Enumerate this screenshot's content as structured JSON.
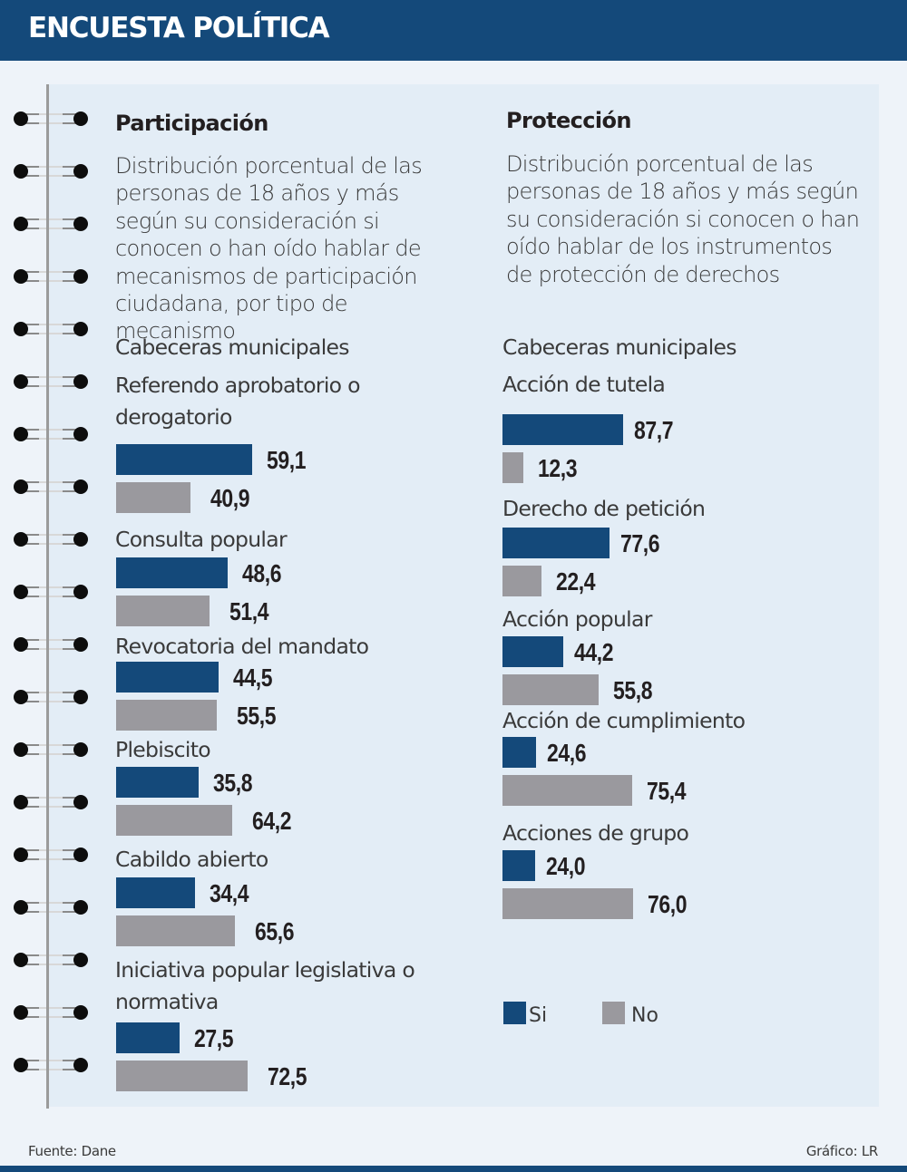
{
  "header": {
    "title": "ENCUESTA POLÍTICA"
  },
  "colors": {
    "si": "#14497a",
    "no": "#9a999e",
    "header": "#14497a",
    "panel": "#e3edf6"
  },
  "left": {
    "title": "Participación",
    "description": "Distribución porcentual de las personas de 18 años y más según su consideración si conocen o han oído hablar de mecanismos de participación ciudadana, por tipo de mecanismo",
    "subtitle": "Cabeceras municipales"
  },
  "right": {
    "title": "Protección",
    "description": "Distribución porcentual de las personas de 18 años y más según su consideración si conocen o han oído hablar de los instrumentos de protección de derechos",
    "subtitle": "Cabeceras municipales"
  },
  "legend": {
    "si": "Si",
    "no": "No"
  },
  "footer": {
    "source": "Fuente: Dane",
    "credit": "Gráfico: LR"
  },
  "chart_data": [
    {
      "type": "bar",
      "orientation": "horizontal",
      "title": "Participación",
      "subtitle": "Cabeceras municipales",
      "unit": "%",
      "categories": [
        "Referendo aprobatorio o derogatorio",
        "Consulta popular",
        "Revocatoria del mandato",
        "Plebiscito",
        "Cabildo abierto",
        "Iniciativa popular legislativa o normativa"
      ],
      "series": [
        {
          "name": "Si",
          "values": [
            59.1,
            48.6,
            44.5,
            35.8,
            34.4,
            27.5
          ],
          "labels": [
            "59,1",
            "48,6",
            "44,5",
            "35,8",
            "34,4",
            "27,5"
          ]
        },
        {
          "name": "No",
          "values": [
            40.9,
            51.4,
            55.5,
            64.2,
            65.6,
            72.5
          ],
          "labels": [
            "40,9",
            "51,4",
            "55,5",
            "64,2",
            "65,6",
            "72,5"
          ]
        }
      ],
      "xlim": [
        0,
        100
      ],
      "grid": false,
      "legend": "bottom-right"
    },
    {
      "type": "bar",
      "orientation": "horizontal",
      "title": "Protección",
      "subtitle": "Cabeceras municipales",
      "unit": "%",
      "categories": [
        "Acción de tutela",
        "Derecho de petición",
        "Acción popular",
        "Acción de cumplimiento",
        "Acciones de grupo"
      ],
      "series": [
        {
          "name": "Si",
          "values": [
            87.7,
            77.6,
            44.2,
            24.6,
            24.0
          ],
          "labels": [
            "87,7",
            "77,6",
            "44,2",
            "24,6",
            "24,0"
          ]
        },
        {
          "name": "No",
          "values": [
            12.3,
            22.4,
            55.8,
            75.4,
            76.0
          ],
          "labels": [
            "12,3",
            "22,4",
            "55,8",
            "75,4",
            "76,0"
          ]
        }
      ],
      "xlim": [
        0,
        100
      ],
      "grid": false,
      "legend": "bottom"
    }
  ]
}
